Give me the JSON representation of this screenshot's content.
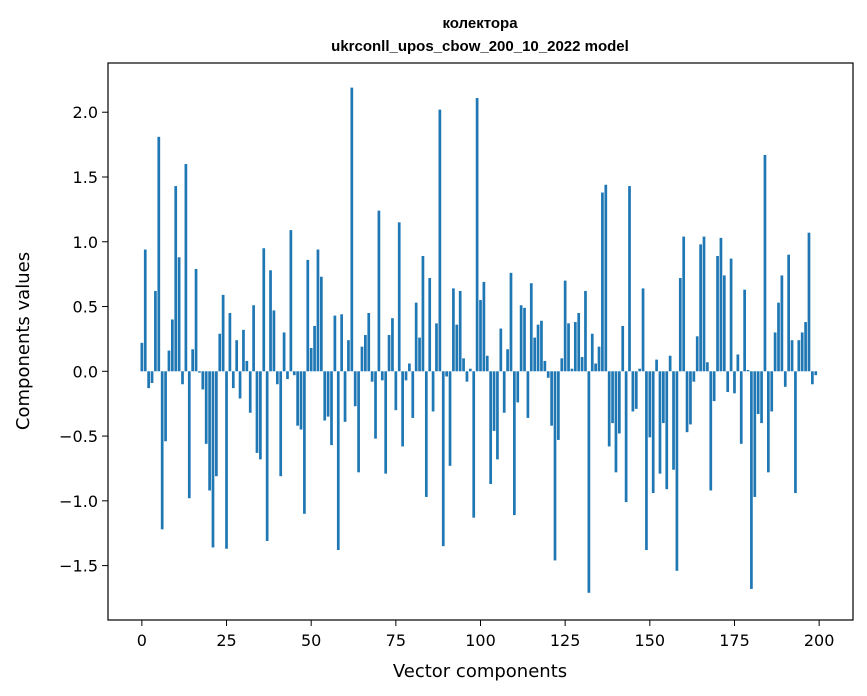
{
  "chart_data": {
    "type": "bar",
    "title": "колектора",
    "subtitle": "ukrconll_upos_cbow_200_10_2022 model",
    "xlabel": "Vector components",
    "ylabel": "Components values",
    "xlim": [
      -10,
      210
    ],
    "ylim": [
      -1.92,
      2.38
    ],
    "xticks": [
      0,
      25,
      50,
      75,
      100,
      125,
      150,
      175,
      200
    ],
    "yticks": [
      -1.5,
      -1.0,
      -0.5,
      0.0,
      0.5,
      1.0,
      1.5,
      2.0
    ],
    "ytick_labels": [
      "−1.5",
      "−1.0",
      "−0.5",
      "0.0",
      "0.5",
      "1.0",
      "1.5",
      "2.0"
    ],
    "bar_color": "#1f77b4",
    "grid": false,
    "values": [
      0.22,
      0.94,
      -0.13,
      -0.09,
      0.62,
      1.81,
      -1.22,
      -0.54,
      0.16,
      0.4,
      1.43,
      0.88,
      -0.1,
      1.6,
      -0.98,
      0.17,
      0.79,
      -0.01,
      -0.14,
      -0.56,
      -0.92,
      -1.36,
      -0.81,
      0.29,
      0.59,
      -1.37,
      0.45,
      -0.13,
      0.24,
      -0.21,
      0.32,
      0.08,
      -0.32,
      0.51,
      -0.63,
      -0.68,
      0.95,
      -1.31,
      0.78,
      0.47,
      -0.1,
      -0.81,
      0.3,
      -0.06,
      1.09,
      -0.03,
      -0.42,
      -0.45,
      -1.1,
      0.86,
      0.18,
      0.35,
      0.94,
      0.73,
      -0.38,
      -0.35,
      -0.57,
      0.43,
      -1.38,
      0.44,
      -0.39,
      0.24,
      2.19,
      -0.27,
      -0.78,
      0.19,
      0.28,
      0.45,
      -0.08,
      -0.52,
      1.24,
      -0.07,
      -0.79,
      0.28,
      0.41,
      -0.3,
      1.15,
      -0.58,
      -0.07,
      0.06,
      -0.36,
      0.53,
      0.26,
      0.89,
      -0.97,
      0.72,
      -0.31,
      0.37,
      2.02,
      -1.35,
      -0.04,
      -0.73,
      0.64,
      0.36,
      0.62,
      0.1,
      -0.08,
      0.02,
      -1.13,
      2.11,
      0.55,
      0.69,
      0.12,
      -0.87,
      -0.46,
      -0.68,
      0.33,
      -0.32,
      0.17,
      0.76,
      -1.11,
      -0.24,
      0.51,
      0.49,
      -0.36,
      0.68,
      0.26,
      0.36,
      0.39,
      0.08,
      -0.05,
      -0.42,
      -1.46,
      -0.53,
      0.1,
      0.7,
      0.37,
      0.02,
      0.38,
      0.45,
      0.11,
      0.62,
      -1.71,
      0.29,
      0.06,
      0.19,
      1.38,
      1.44,
      -0.58,
      -0.4,
      -0.78,
      -0.48,
      0.35,
      -1.01,
      1.43,
      -0.31,
      -0.29,
      0.02,
      0.64,
      -1.38,
      -0.51,
      -0.94,
      0.09,
      -0.79,
      -0.4,
      -0.91,
      0.12,
      -0.76,
      -1.54,
      0.72,
      1.04,
      -0.47,
      -0.41,
      -0.08,
      0.27,
      0.98,
      1.04,
      0.07,
      -0.92,
      -0.23,
      0.89,
      1.03,
      0.74,
      -0.16,
      0.87,
      -0.17,
      0.13,
      -0.56,
      0.63,
      0.01,
      -1.68,
      -0.97,
      -0.33,
      -0.4,
      1.67,
      -0.78,
      -0.31,
      0.3,
      0.53,
      0.74,
      -0.12,
      0.9,
      0.24,
      -0.94,
      0.24,
      0.3,
      0.38,
      1.07,
      -0.1,
      -0.03
    ]
  }
}
